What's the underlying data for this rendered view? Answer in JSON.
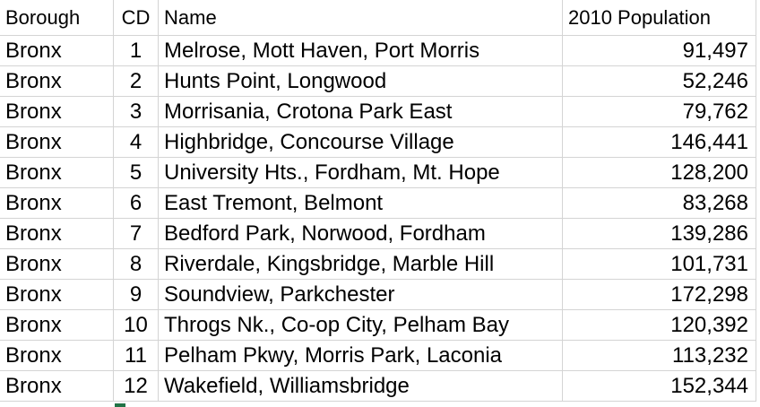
{
  "header": {
    "borough": "Borough",
    "cd": "CD",
    "name": "Name",
    "population": "2010 Population"
  },
  "rows": [
    {
      "borough": "Bronx",
      "cd": "1",
      "name": "Melrose, Mott Haven, Port Morris",
      "population": "91,497"
    },
    {
      "borough": "Bronx",
      "cd": "2",
      "name": "Hunts Point, Longwood",
      "population": "52,246"
    },
    {
      "borough": "Bronx",
      "cd": "3",
      "name": "Morrisania, Crotona Park East",
      "population": "79,762"
    },
    {
      "borough": "Bronx",
      "cd": "4",
      "name": "Highbridge, Concourse Village",
      "population": "146,441"
    },
    {
      "borough": "Bronx",
      "cd": "5",
      "name": "University Hts., Fordham, Mt. Hope",
      "population": "128,200"
    },
    {
      "borough": "Bronx",
      "cd": "6",
      "name": "East Tremont, Belmont",
      "population": "83,268"
    },
    {
      "borough": "Bronx",
      "cd": "7",
      "name": "Bedford Park, Norwood, Fordham",
      "population": "139,286"
    },
    {
      "borough": "Bronx",
      "cd": "8",
      "name": "Riverdale, Kingsbridge, Marble Hill",
      "population": "101,731"
    },
    {
      "borough": "Bronx",
      "cd": "9",
      "name": "Soundview, Parkchester",
      "population": "172,298"
    },
    {
      "borough": "Bronx",
      "cd": "10",
      "name": "Throgs Nk., Co-op City, Pelham Bay",
      "population": "120,392"
    },
    {
      "borough": "Bronx",
      "cd": "11",
      "name": "Pelham Pkwy, Morris Park, Laconia",
      "population": "113,232"
    },
    {
      "borough": "Bronx",
      "cd": "12",
      "name": "Wakefield, Williamsbridge",
      "population": "152,344"
    }
  ],
  "colors": {
    "gridline": "#d4d4d4",
    "selection_handle": "#217346"
  }
}
